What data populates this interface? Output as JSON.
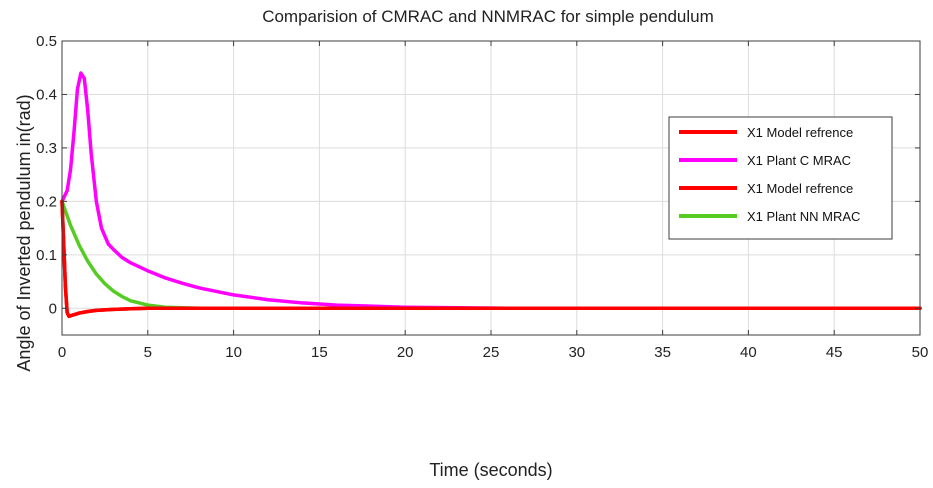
{
  "chart_data": {
    "type": "line",
    "title": "Comparision of CMRAC and NNMRAC for simple pendulum",
    "xlabel": "Time (seconds)",
    "ylabel": "Angle of Inverted pendulum in(rad)",
    "xlim": [
      0,
      50
    ],
    "ylim": [
      -0.05,
      0.5
    ],
    "xticks": [
      0,
      5,
      10,
      15,
      20,
      25,
      30,
      35,
      40,
      45,
      50
    ],
    "yticks": [
      0,
      0.1,
      0.2,
      0.3,
      0.4,
      0.5
    ],
    "grid": true,
    "legend_position": "top-right",
    "series": [
      {
        "name": "X1 Model refrence",
        "color": "#ff0000",
        "x": [
          0,
          0.1,
          0.2,
          0.3,
          0.4,
          0.6,
          0.8,
          1.0,
          1.5,
          2.0,
          3.0,
          4.0,
          5.0,
          7.0,
          10,
          20,
          30,
          40,
          50
        ],
        "y": [
          0.2,
          0.12,
          0.04,
          -0.008,
          -0.015,
          -0.013,
          -0.011,
          -0.009,
          -0.006,
          -0.004,
          -0.002,
          -0.001,
          0,
          0,
          0,
          0,
          0,
          0,
          0
        ]
      },
      {
        "name": "X1 Plant C MRAC",
        "color": "#ff00ff",
        "x": [
          0,
          0.3,
          0.5,
          0.7,
          0.9,
          1.1,
          1.3,
          1.5,
          1.7,
          2.0,
          2.3,
          2.7,
          3.0,
          3.5,
          4.0,
          5.0,
          6.0,
          7.0,
          8.0,
          10,
          12,
          14,
          16,
          18,
          20,
          23,
          26,
          30,
          35,
          40,
          50
        ],
        "y": [
          0.2,
          0.22,
          0.26,
          0.33,
          0.41,
          0.44,
          0.43,
          0.37,
          0.29,
          0.2,
          0.15,
          0.12,
          0.11,
          0.095,
          0.085,
          0.07,
          0.057,
          0.047,
          0.038,
          0.025,
          0.016,
          0.01,
          0.006,
          0.004,
          0.002,
          0.001,
          0,
          0,
          0,
          0,
          0
        ]
      },
      {
        "name": "X1 Model refrence",
        "color": "#ff0000",
        "x": [
          0,
          0.1,
          0.2,
          0.3,
          0.4,
          0.6,
          0.8,
          1.0,
          1.5,
          2.0,
          3.0,
          4.0,
          5.0,
          7.0,
          10,
          20,
          30,
          40,
          50
        ],
        "y": [
          0.2,
          0.12,
          0.04,
          -0.008,
          -0.015,
          -0.013,
          -0.011,
          -0.009,
          -0.006,
          -0.004,
          -0.002,
          -0.001,
          0,
          0,
          0,
          0,
          0,
          0,
          0
        ]
      },
      {
        "name": "X1 Plant NN MRAC",
        "color": "#55cc22",
        "x": [
          0,
          0.5,
          1.0,
          1.5,
          2.0,
          2.5,
          3.0,
          3.5,
          4.0,
          5.0,
          6.0,
          7.0,
          8.0,
          10,
          20,
          30,
          40,
          50
        ],
        "y": [
          0.2,
          0.155,
          0.118,
          0.088,
          0.064,
          0.046,
          0.032,
          0.022,
          0.014,
          0.006,
          0.002,
          0.001,
          0,
          0,
          0,
          0,
          0,
          0
        ]
      }
    ]
  }
}
